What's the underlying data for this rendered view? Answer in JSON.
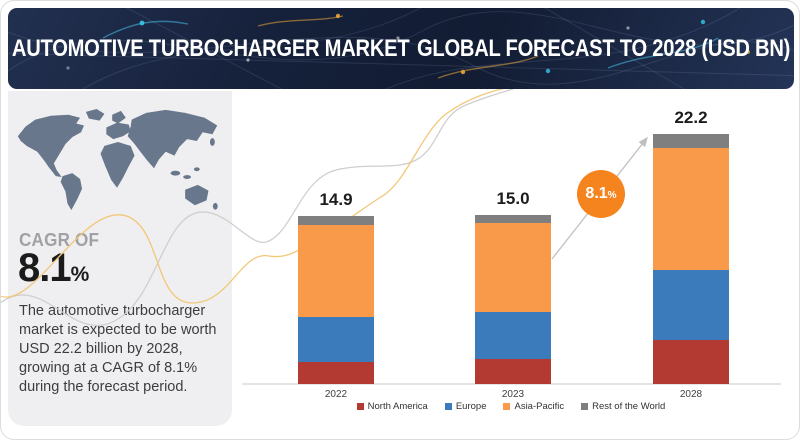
{
  "header": {
    "title_regular": "AUTOMOTIVE TURBOCHARGER MARKET",
    "title_bold": "GLOBAL FORECAST TO 2028 (USD BN)"
  },
  "sidebar": {
    "cagr_label": "CAGR OF",
    "cagr_value": "8.1",
    "cagr_unit": "%",
    "description": "The automotive turbocharger market is expected to be worth USD 22.2 billion by 2028, growing at a CAGR of 8.1% during the forecast period."
  },
  "badge": {
    "value": "8.1",
    "unit": "%"
  },
  "colors": {
    "north_america": "#b23a33",
    "europe": "#3c7bbb",
    "asia_pacific": "#f99a4a",
    "rest_of_world": "#7f7f7f",
    "badge_orange": "#f6841e",
    "banner_navy": "#15203a",
    "panel_gray": "#efeff1",
    "map_gray": "#68778c"
  },
  "chart_data": {
    "type": "bar",
    "stacked": true,
    "title": "AUTOMOTIVE TURBOCHARGER MARKET GLOBAL FORECAST TO 2028 (USD BN)",
    "unit": "USD BN",
    "categories": [
      "2022",
      "2023",
      "2028"
    ],
    "totals": [
      14.9,
      15.0,
      22.2
    ],
    "series": [
      {
        "name": "North America",
        "color": "#b23a33",
        "values": [
          2.0,
          2.2,
          3.9
        ]
      },
      {
        "name": "Europe",
        "color": "#3c7bbb",
        "values": [
          4.0,
          4.2,
          6.2
        ]
      },
      {
        "name": "Asia-Pacific",
        "color": "#f99a4a",
        "values": [
          8.1,
          7.9,
          10.9
        ]
      },
      {
        "name": "Rest of the World",
        "color": "#7f7f7f",
        "values": [
          0.8,
          0.7,
          1.2
        ]
      }
    ],
    "legend_position": "bottom",
    "annotations": [
      {
        "type": "cagr",
        "text": "8.1%",
        "from": "2023",
        "to": "2028"
      }
    ]
  }
}
